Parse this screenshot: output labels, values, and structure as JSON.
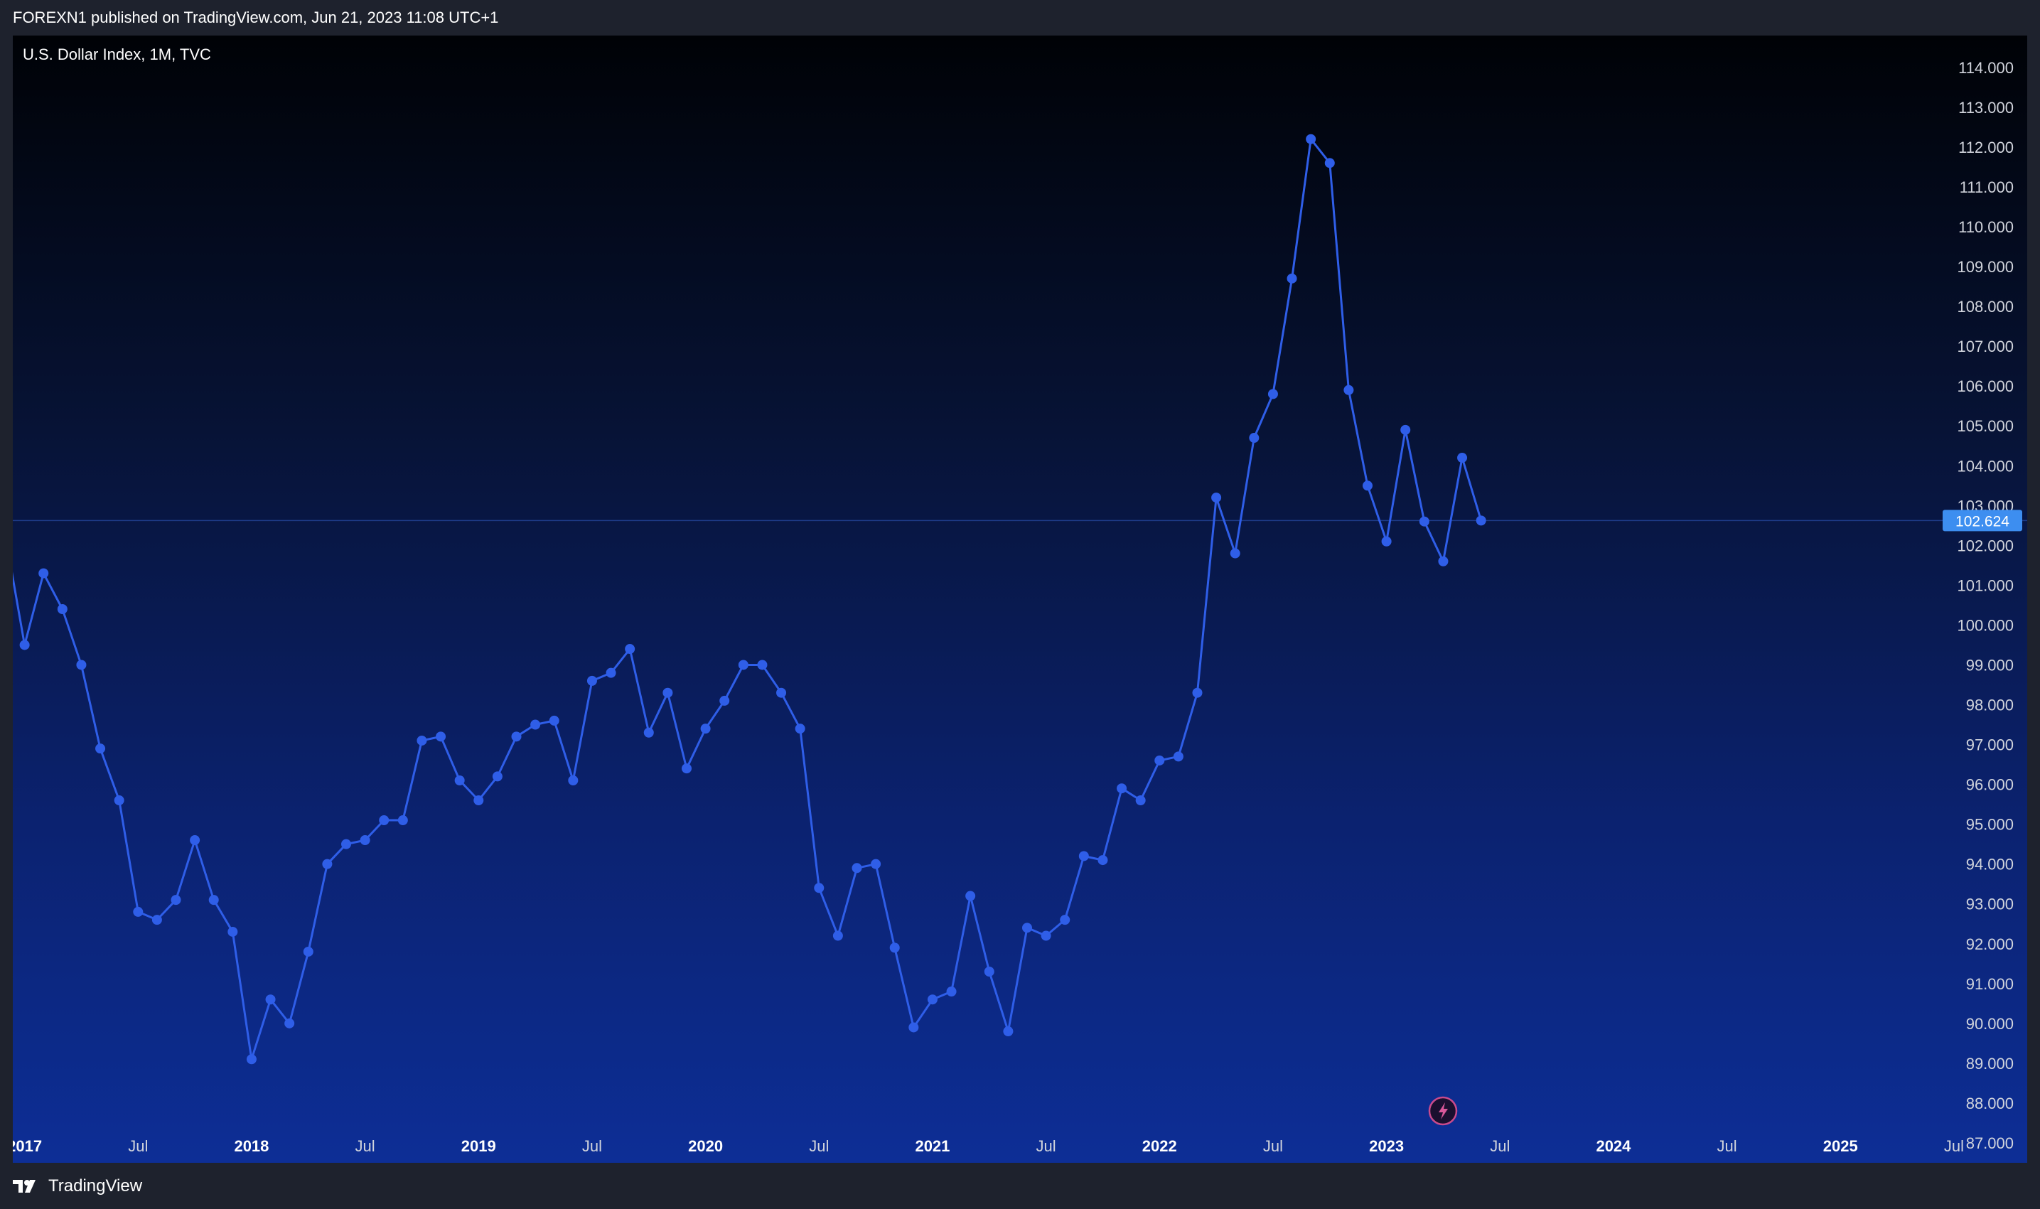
{
  "header": {
    "publish_note": "FOREXN1 published on TradingView.com, Jun 21, 2023 11:08 UTC+1"
  },
  "chart": {
    "symbol_title": "U.S. Dollar Index, 1M, TVC"
  },
  "footer": {
    "brand": "TradingView"
  },
  "colors": {
    "line": "#2f5ee8",
    "badge": "#3d8ef0",
    "price_line": "#1f3c8a"
  },
  "icons": {
    "logo": "tradingview-logo-icon",
    "flash": "lightning-icon"
  },
  "chart_data": {
    "type": "line",
    "title": "U.S. Dollar Index, 1M, TVC",
    "xlabel": "",
    "ylabel": "",
    "x_range": [
      "2016-12",
      "2025-12"
    ],
    "ylim": [
      86.5,
      114.8
    ],
    "y_ticks": [
      87,
      88,
      89,
      90,
      91,
      92,
      93,
      94,
      95,
      96,
      97,
      98,
      99,
      100,
      101,
      102,
      103,
      104,
      105,
      106,
      107,
      108,
      109,
      110,
      111,
      112,
      113,
      114
    ],
    "y_tick_labels": [
      "87.000",
      "88.000",
      "89.000",
      "90.000",
      "91.000",
      "92.000",
      "93.000",
      "94.000",
      "95.000",
      "96.000",
      "97.000",
      "98.000",
      "99.000",
      "100.000",
      "101.000",
      "102.000",
      "103.000",
      "104.000",
      "105.000",
      "106.000",
      "107.000",
      "108.000",
      "109.000",
      "110.000",
      "111.000",
      "112.000",
      "113.000",
      "114.000"
    ],
    "x_ticks": [
      {
        "label": "2017",
        "date": "2017-01",
        "bold": true
      },
      {
        "label": "Jul",
        "date": "2017-07",
        "bold": false
      },
      {
        "label": "2018",
        "date": "2018-01",
        "bold": true
      },
      {
        "label": "Jul",
        "date": "2018-07",
        "bold": false
      },
      {
        "label": "2019",
        "date": "2019-01",
        "bold": true
      },
      {
        "label": "Jul",
        "date": "2019-07",
        "bold": false
      },
      {
        "label": "2020",
        "date": "2020-01",
        "bold": true
      },
      {
        "label": "Jul",
        "date": "2020-07",
        "bold": false
      },
      {
        "label": "2021",
        "date": "2021-01",
        "bold": true
      },
      {
        "label": "Jul",
        "date": "2021-07",
        "bold": false
      },
      {
        "label": "2022",
        "date": "2022-01",
        "bold": true
      },
      {
        "label": "Jul",
        "date": "2022-07",
        "bold": false
      },
      {
        "label": "2023",
        "date": "2023-01",
        "bold": true
      },
      {
        "label": "Jul",
        "date": "2023-07",
        "bold": false
      },
      {
        "label": "2024",
        "date": "2024-01",
        "bold": true
      },
      {
        "label": "Jul",
        "date": "2024-07",
        "bold": false
      },
      {
        "label": "2025",
        "date": "2025-01",
        "bold": true
      },
      {
        "label": "Jul",
        "date": "2025-07",
        "bold": false
      }
    ],
    "current_price": 102.624,
    "current_price_label": "102.624",
    "grid": false,
    "series": [
      {
        "x": [
          "2016-12",
          "2017-01",
          "2017-02",
          "2017-03",
          "2017-04",
          "2017-05",
          "2017-06",
          "2017-07",
          "2017-08",
          "2017-09",
          "2017-10",
          "2017-11",
          "2017-12",
          "2018-01",
          "2018-02",
          "2018-03",
          "2018-04",
          "2018-05",
          "2018-06",
          "2018-07",
          "2018-08",
          "2018-09",
          "2018-10",
          "2018-11",
          "2018-12",
          "2019-01",
          "2019-02",
          "2019-03",
          "2019-04",
          "2019-05",
          "2019-06",
          "2019-07",
          "2019-08",
          "2019-09",
          "2019-10",
          "2019-11",
          "2019-12",
          "2020-01",
          "2020-02",
          "2020-03",
          "2020-04",
          "2020-05",
          "2020-06",
          "2020-07",
          "2020-08",
          "2020-09",
          "2020-10",
          "2020-11",
          "2020-12",
          "2021-01",
          "2021-02",
          "2021-03",
          "2021-04",
          "2021-05",
          "2021-06",
          "2021-07",
          "2021-08",
          "2021-09",
          "2021-10",
          "2021-11",
          "2021-12",
          "2022-01",
          "2022-02",
          "2022-03",
          "2022-04",
          "2022-05",
          "2022-06",
          "2022-07",
          "2022-08",
          "2022-09",
          "2022-10",
          "2022-11",
          "2022-12",
          "2023-01",
          "2023-02",
          "2023-03",
          "2023-04",
          "2023-05",
          "2023-06"
        ],
        "values": [
          102.2,
          99.5,
          101.3,
          100.4,
          99.0,
          96.9,
          95.6,
          92.8,
          92.6,
          93.1,
          94.6,
          93.1,
          92.3,
          89.1,
          90.6,
          90.0,
          91.8,
          94.0,
          94.5,
          94.6,
          95.1,
          95.1,
          97.1,
          97.2,
          96.1,
          95.6,
          96.2,
          97.2,
          97.5,
          97.6,
          96.1,
          98.6,
          98.8,
          99.4,
          97.3,
          98.3,
          96.4,
          97.4,
          98.1,
          99.0,
          99.0,
          98.3,
          97.4,
          93.4,
          92.2,
          93.9,
          94.0,
          91.9,
          89.9,
          90.6,
          90.8,
          93.2,
          91.3,
          89.8,
          92.4,
          92.2,
          92.6,
          94.2,
          94.1,
          95.9,
          95.6,
          96.6,
          96.7,
          98.3,
          103.2,
          101.8,
          104.7,
          105.8,
          108.7,
          112.2,
          111.6,
          105.9,
          103.5,
          102.1,
          104.9,
          102.6,
          101.6,
          104.2,
          102.624
        ]
      }
    ]
  }
}
